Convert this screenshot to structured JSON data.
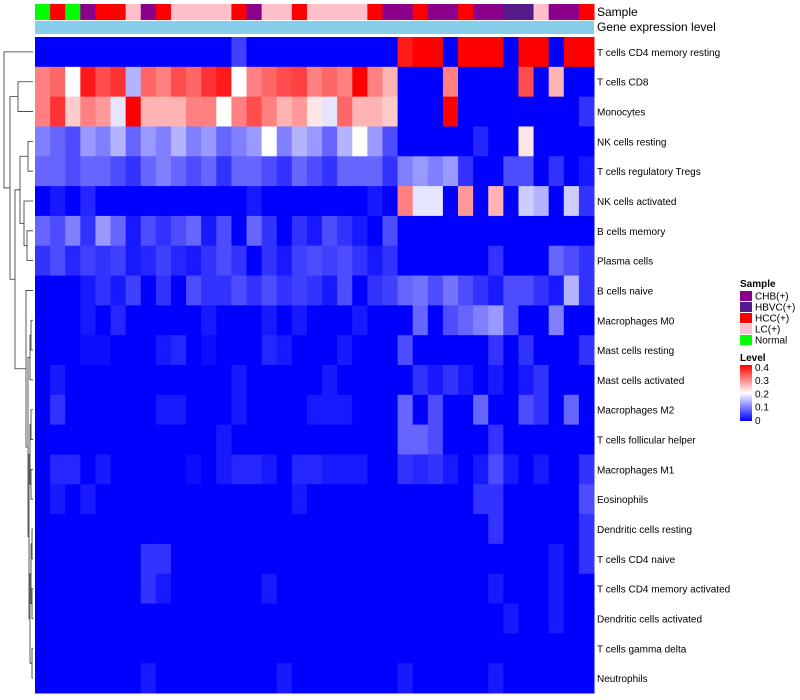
{
  "chart_data": {
    "type": "heatmap",
    "title": "",
    "annotation_tracks": [
      {
        "label": "Sample"
      },
      {
        "label": "Gene expression level"
      }
    ],
    "column_samples": [
      "Normal",
      "HCC(+)",
      "Normal",
      "CHB(+)",
      "HCC(+)",
      "HCC(+)",
      "LC(+)",
      "CHB(+)",
      "HCC(+)",
      "LC(+)",
      "LC(+)",
      "LC(+)",
      "LC(+)",
      "HCC(+)",
      "CHB(+)",
      "LC(+)",
      "LC(+)",
      "HCC(+)",
      "LC(+)",
      "LC(+)",
      "LC(+)",
      "LC(+)",
      "HCC(+)",
      "CHB(+)",
      "CHB(+)",
      "HCC(+)",
      "CHB(+)",
      "CHB(+)",
      "HCC(+)",
      "CHB(+)",
      "CHB(+)",
      "HBVC(+)",
      "HBVC(+)",
      "LC(+)",
      "CHB(+)",
      "CHB(+)",
      "HCC(+)"
    ],
    "rows": [
      "T cells CD4 memory resting",
      "T cells CD8",
      "Monocytes",
      "NK cells resting",
      "T cells regulatory  Tregs",
      "NK cells activated",
      "B cells memory",
      "Plasma cells",
      "B cells naive",
      "Macrophages M0",
      "Mast cells resting",
      "Mast cells activated",
      "Macrophages M2",
      "T cells follicular helper",
      "Macrophages M1",
      "Eosinophils",
      "Dendritic cells resting",
      "T cells CD4 naive",
      "T cells CD4 memory activated",
      "Dendritic cells activated",
      "T cells gamma delta",
      "Neutrophils"
    ],
    "values": [
      [
        0.0,
        0.0,
        0.0,
        0.0,
        0.0,
        0.0,
        0.0,
        0.0,
        0.0,
        0.0,
        0.0,
        0.0,
        0.0,
        0.05,
        0.0,
        0.0,
        0.0,
        0.0,
        0.0,
        0.0,
        0.0,
        0.0,
        0.0,
        0.0,
        0.38,
        0.42,
        0.4,
        0.0,
        0.42,
        0.46,
        0.46,
        0.0,
        0.44,
        0.44,
        0.0,
        0.44,
        0.44
      ],
      [
        0.3,
        0.32,
        0.2,
        0.38,
        0.34,
        0.36,
        0.14,
        0.32,
        0.3,
        0.34,
        0.32,
        0.36,
        0.38,
        0.2,
        0.3,
        0.32,
        0.34,
        0.35,
        0.3,
        0.32,
        0.3,
        0.4,
        0.3,
        0.26,
        0.0,
        0.0,
        0.0,
        0.3,
        0.0,
        0.0,
        0.0,
        0.0,
        0.34,
        0.0,
        0.26,
        0.0,
        0.0
      ],
      [
        0.3,
        0.36,
        0.24,
        0.3,
        0.28,
        0.18,
        0.44,
        0.26,
        0.26,
        0.26,
        0.3,
        0.3,
        0.2,
        0.3,
        0.34,
        0.3,
        0.26,
        0.28,
        0.22,
        0.18,
        0.32,
        0.26,
        0.26,
        0.24,
        0.0,
        0.0,
        0.0,
        0.42,
        0.0,
        0.0,
        0.0,
        0.0,
        0.0,
        0.0,
        0.0,
        0.0,
        0.04
      ],
      [
        0.1,
        0.08,
        0.06,
        0.12,
        0.1,
        0.14,
        0.08,
        0.12,
        0.1,
        0.14,
        0.1,
        0.12,
        0.08,
        0.1,
        0.12,
        0.2,
        0.1,
        0.14,
        0.12,
        0.08,
        0.14,
        0.2,
        0.12,
        0.06,
        0.0,
        0.0,
        0.0,
        0.0,
        0.0,
        0.03,
        0.0,
        0.0,
        0.22,
        0.0,
        0.0,
        0.0,
        0.0
      ],
      [
        0.08,
        0.08,
        0.06,
        0.08,
        0.08,
        0.06,
        0.04,
        0.08,
        0.1,
        0.08,
        0.06,
        0.08,
        0.04,
        0.08,
        0.08,
        0.06,
        0.04,
        0.08,
        0.06,
        0.04,
        0.08,
        0.08,
        0.08,
        0.04,
        0.1,
        0.12,
        0.1,
        0.12,
        0.04,
        0.0,
        0.0,
        0.06,
        0.06,
        0.0,
        0.04,
        0.0,
        0.02
      ],
      [
        0.0,
        0.02,
        0.0,
        0.03,
        0.0,
        0.0,
        0.0,
        0.0,
        0.0,
        0.0,
        0.0,
        0.0,
        0.0,
        0.0,
        0.02,
        0.0,
        0.0,
        0.0,
        0.0,
        0.0,
        0.0,
        0.0,
        0.02,
        0.0,
        0.3,
        0.18,
        0.18,
        0.0,
        0.28,
        0.0,
        0.26,
        0.0,
        0.16,
        0.14,
        0.0,
        0.16,
        0.04
      ],
      [
        0.08,
        0.06,
        0.1,
        0.04,
        0.12,
        0.08,
        0.02,
        0.06,
        0.04,
        0.06,
        0.08,
        0.02,
        0.06,
        0.0,
        0.08,
        0.04,
        0.0,
        0.04,
        0.02,
        0.06,
        0.04,
        0.02,
        0.0,
        0.06,
        0.0,
        0.0,
        0.0,
        0.0,
        0.0,
        0.0,
        0.0,
        0.0,
        0.0,
        0.0,
        0.0,
        0.0,
        0.0
      ],
      [
        0.04,
        0.06,
        0.03,
        0.05,
        0.04,
        0.05,
        0.02,
        0.03,
        0.05,
        0.03,
        0.02,
        0.04,
        0.06,
        0.04,
        0.0,
        0.04,
        0.02,
        0.05,
        0.06,
        0.05,
        0.06,
        0.04,
        0.02,
        0.04,
        0.0,
        0.0,
        0.0,
        0.0,
        0.0,
        0.0,
        0.04,
        0.0,
        0.0,
        0.0,
        0.08,
        0.06,
        0.04
      ],
      [
        0.0,
        0.0,
        0.0,
        0.02,
        0.04,
        0.02,
        0.05,
        0.0,
        0.04,
        0.0,
        0.06,
        0.04,
        0.04,
        0.06,
        0.04,
        0.06,
        0.04,
        0.05,
        0.04,
        0.02,
        0.06,
        0.0,
        0.04,
        0.05,
        0.08,
        0.09,
        0.06,
        0.09,
        0.06,
        0.04,
        0.02,
        0.06,
        0.06,
        0.04,
        0.02,
        0.14,
        0.04
      ],
      [
        0.0,
        0.0,
        0.0,
        0.02,
        0.0,
        0.03,
        0.0,
        0.0,
        0.0,
        0.0,
        0.0,
        0.02,
        0.0,
        0.0,
        0.0,
        0.02,
        0.0,
        0.02,
        0.0,
        0.0,
        0.0,
        0.02,
        0.0,
        0.0,
        0.0,
        0.08,
        0.0,
        0.06,
        0.08,
        0.1,
        0.12,
        0.06,
        0.0,
        0.0,
        0.1,
        0.0,
        0.0
      ],
      [
        0.0,
        0.0,
        0.0,
        0.01,
        0.01,
        0.0,
        0.0,
        0.0,
        0.02,
        0.03,
        0.0,
        0.01,
        0.0,
        0.0,
        0.0,
        0.03,
        0.02,
        0.0,
        0.0,
        0.0,
        0.02,
        0.0,
        0.0,
        0.0,
        0.06,
        0.0,
        0.0,
        0.0,
        0.0,
        0.0,
        0.04,
        0.0,
        0.04,
        0.0,
        0.0,
        0.0,
        0.04
      ],
      [
        0.0,
        0.02,
        0.0,
        0.0,
        0.0,
        0.0,
        0.0,
        0.0,
        0.0,
        0.0,
        0.0,
        0.0,
        0.0,
        0.02,
        0.0,
        0.0,
        0.0,
        0.0,
        0.0,
        0.02,
        0.0,
        0.0,
        0.0,
        0.0,
        0.0,
        0.04,
        0.02,
        0.04,
        0.02,
        0.0,
        0.02,
        0.0,
        0.02,
        0.04,
        0.0,
        0.0,
        0.0
      ],
      [
        0.0,
        0.04,
        0.0,
        0.0,
        0.0,
        0.0,
        0.0,
        0.0,
        0.02,
        0.02,
        0.0,
        0.0,
        0.0,
        0.02,
        0.0,
        0.0,
        0.0,
        0.0,
        0.02,
        0.02,
        0.02,
        0.0,
        0.0,
        0.0,
        0.08,
        0.0,
        0.06,
        0.0,
        0.0,
        0.08,
        0.0,
        0.0,
        0.06,
        0.04,
        0.0,
        0.08,
        0.0
      ],
      [
        0.0,
        0.0,
        0.0,
        0.0,
        0.0,
        0.0,
        0.0,
        0.0,
        0.0,
        0.0,
        0.0,
        0.0,
        0.02,
        0.0,
        0.0,
        0.0,
        0.0,
        0.0,
        0.0,
        0.0,
        0.0,
        0.0,
        0.0,
        0.0,
        0.08,
        0.08,
        0.06,
        0.0,
        0.0,
        0.0,
        0.04,
        0.0,
        0.0,
        0.0,
        0.0,
        0.0,
        0.0
      ],
      [
        0.0,
        0.03,
        0.03,
        0.0,
        0.02,
        0.0,
        0.0,
        0.0,
        0.0,
        0.0,
        0.01,
        0.0,
        0.02,
        0.03,
        0.03,
        0.02,
        0.0,
        0.03,
        0.03,
        0.02,
        0.02,
        0.02,
        0.0,
        0.0,
        0.04,
        0.03,
        0.04,
        0.02,
        0.0,
        0.02,
        0.06,
        0.02,
        0.0,
        0.02,
        0.0,
        0.0,
        0.04
      ],
      [
        0.0,
        0.02,
        0.0,
        0.02,
        0.0,
        0.0,
        0.0,
        0.0,
        0.0,
        0.0,
        0.0,
        0.0,
        0.0,
        0.0,
        0.0,
        0.0,
        0.0,
        0.02,
        0.0,
        0.0,
        0.0,
        0.0,
        0.0,
        0.0,
        0.0,
        0.0,
        0.0,
        0.0,
        0.0,
        0.04,
        0.04,
        0.0,
        0.0,
        0.0,
        0.0,
        0.0,
        0.06
      ],
      [
        0.0,
        0.0,
        0.0,
        0.0,
        0.0,
        0.0,
        0.0,
        0.0,
        0.0,
        0.0,
        0.0,
        0.0,
        0.0,
        0.0,
        0.0,
        0.0,
        0.0,
        0.0,
        0.0,
        0.0,
        0.0,
        0.0,
        0.0,
        0.0,
        0.0,
        0.0,
        0.0,
        0.0,
        0.0,
        0.0,
        0.04,
        0.0,
        0.0,
        0.0,
        0.0,
        0.0,
        0.04
      ],
      [
        0.0,
        0.0,
        0.0,
        0.0,
        0.0,
        0.0,
        0.0,
        0.04,
        0.04,
        0.0,
        0.0,
        0.0,
        0.0,
        0.0,
        0.0,
        0.0,
        0.0,
        0.0,
        0.0,
        0.0,
        0.0,
        0.0,
        0.0,
        0.0,
        0.0,
        0.0,
        0.0,
        0.0,
        0.0,
        0.0,
        0.0,
        0.0,
        0.0,
        0.0,
        0.02,
        0.0,
        0.04
      ],
      [
        0.0,
        0.0,
        0.0,
        0.0,
        0.0,
        0.0,
        0.0,
        0.04,
        0.02,
        0.0,
        0.0,
        0.0,
        0.0,
        0.0,
        0.0,
        0.02,
        0.0,
        0.0,
        0.0,
        0.0,
        0.0,
        0.0,
        0.0,
        0.0,
        0.0,
        0.0,
        0.0,
        0.0,
        0.0,
        0.0,
        0.02,
        0.0,
        0.0,
        0.0,
        0.02,
        0.0,
        0.0
      ],
      [
        0.0,
        0.0,
        0.0,
        0.0,
        0.0,
        0.0,
        0.0,
        0.0,
        0.0,
        0.0,
        0.0,
        0.0,
        0.0,
        0.0,
        0.0,
        0.0,
        0.0,
        0.0,
        0.0,
        0.0,
        0.0,
        0.0,
        0.0,
        0.0,
        0.0,
        0.0,
        0.0,
        0.0,
        0.0,
        0.0,
        0.0,
        0.02,
        0.0,
        0.0,
        0.02,
        0.0,
        0.0
      ],
      [
        0.0,
        0.0,
        0.0,
        0.0,
        0.0,
        0.0,
        0.0,
        0.0,
        0.0,
        0.0,
        0.0,
        0.0,
        0.0,
        0.0,
        0.0,
        0.0,
        0.0,
        0.0,
        0.0,
        0.0,
        0.0,
        0.0,
        0.0,
        0.0,
        0.0,
        0.0,
        0.0,
        0.0,
        0.0,
        0.0,
        0.0,
        0.0,
        0.0,
        0.0,
        0.0,
        0.0,
        0.0
      ],
      [
        0.0,
        0.0,
        0.0,
        0.0,
        0.0,
        0.0,
        0.0,
        0.02,
        0.0,
        0.0,
        0.0,
        0.0,
        0.0,
        0.0,
        0.0,
        0.0,
        0.02,
        0.0,
        0.0,
        0.0,
        0.0,
        0.0,
        0.0,
        0.0,
        0.02,
        0.0,
        0.0,
        0.0,
        0.0,
        0.0,
        0.02,
        0.0,
        0.0,
        0.0,
        0.0,
        0.0,
        0.0
      ]
    ],
    "color_scale": {
      "min": 0,
      "mid": 0.2,
      "max": 0.4,
      "low_color": "#0000ff",
      "mid_color": "#ffffff",
      "high_color": "#ff0000"
    },
    "sample_colors": {
      "CHB(+)": "#8b008b",
      "HBVC(+)": "#551a8b",
      "HCC(+)": "#ff0000",
      "LC(+)": "#ffc0cb",
      "Normal": "#00ff00"
    },
    "expression_track_color": "#87ceeb",
    "legend": {
      "sample_title": "Sample",
      "sample_items": [
        "CHB(+)",
        "HBVC(+)",
        "HCC(+)",
        "LC(+)",
        "Normal"
      ],
      "level_title": "Level",
      "level_ticks": [
        "0.4",
        "0.3",
        "0.2",
        "0.1",
        "0"
      ],
      "placement": "right"
    },
    "dendrogram": "rows"
  }
}
